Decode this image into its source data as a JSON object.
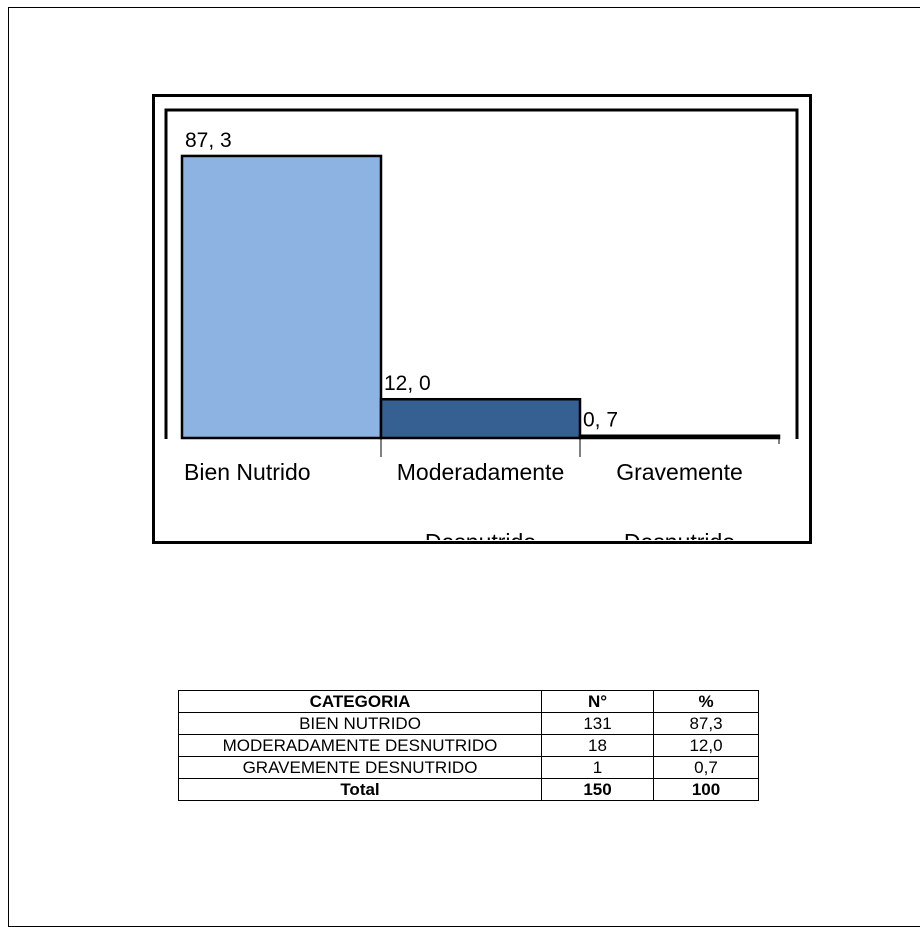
{
  "chart_data": {
    "type": "bar",
    "categories": [
      "Bien Nutrido",
      "Moderadamente Desnutrido",
      "Gravemente Desnutrido"
    ],
    "category_lines": [
      [
        "Bien Nutrido"
      ],
      [
        "Moderadamente",
        "Desnutrido"
      ],
      [
        "Gravemente",
        "Desnutrido"
      ]
    ],
    "values": [
      87.3,
      12.0,
      0.7
    ],
    "data_labels": [
      "87, 3",
      "12, 0",
      "0, 7"
    ],
    "colors": [
      "#8DB3E2",
      "#366092",
      "#244062"
    ],
    "ylim": [
      0,
      100
    ],
    "title": "",
    "xlabel": "",
    "ylabel": "",
    "grid": false,
    "legend": "none"
  },
  "table": {
    "headers": [
      "CATEGORIA",
      "N°",
      "%"
    ],
    "rows": [
      [
        "BIEN NUTRIDO",
        "131",
        "87,3"
      ],
      [
        "MODERADAMENTE DESNUTRIDO",
        "18",
        "12,0"
      ],
      [
        "GRAVEMENTE DESNUTRIDO",
        "1",
        "0,7"
      ]
    ],
    "total": [
      "Total",
      "150",
      "100"
    ]
  }
}
